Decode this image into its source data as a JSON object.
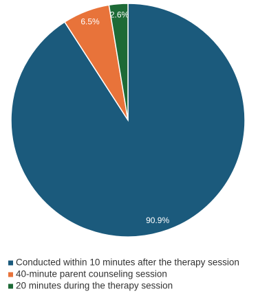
{
  "chart_data": {
    "type": "pie",
    "categories": [
      "Conducted within 10 minutes after the therapy session",
      "40-minute parent counseling session",
      "20 minutes during the therapy session"
    ],
    "values": [
      90.9,
      6.5,
      2.6
    ],
    "value_labels": [
      "90.9%",
      "6.5%",
      "2.6%"
    ],
    "colors": [
      "#1b5a7c",
      "#e8733a",
      "#1d6a36"
    ]
  }
}
